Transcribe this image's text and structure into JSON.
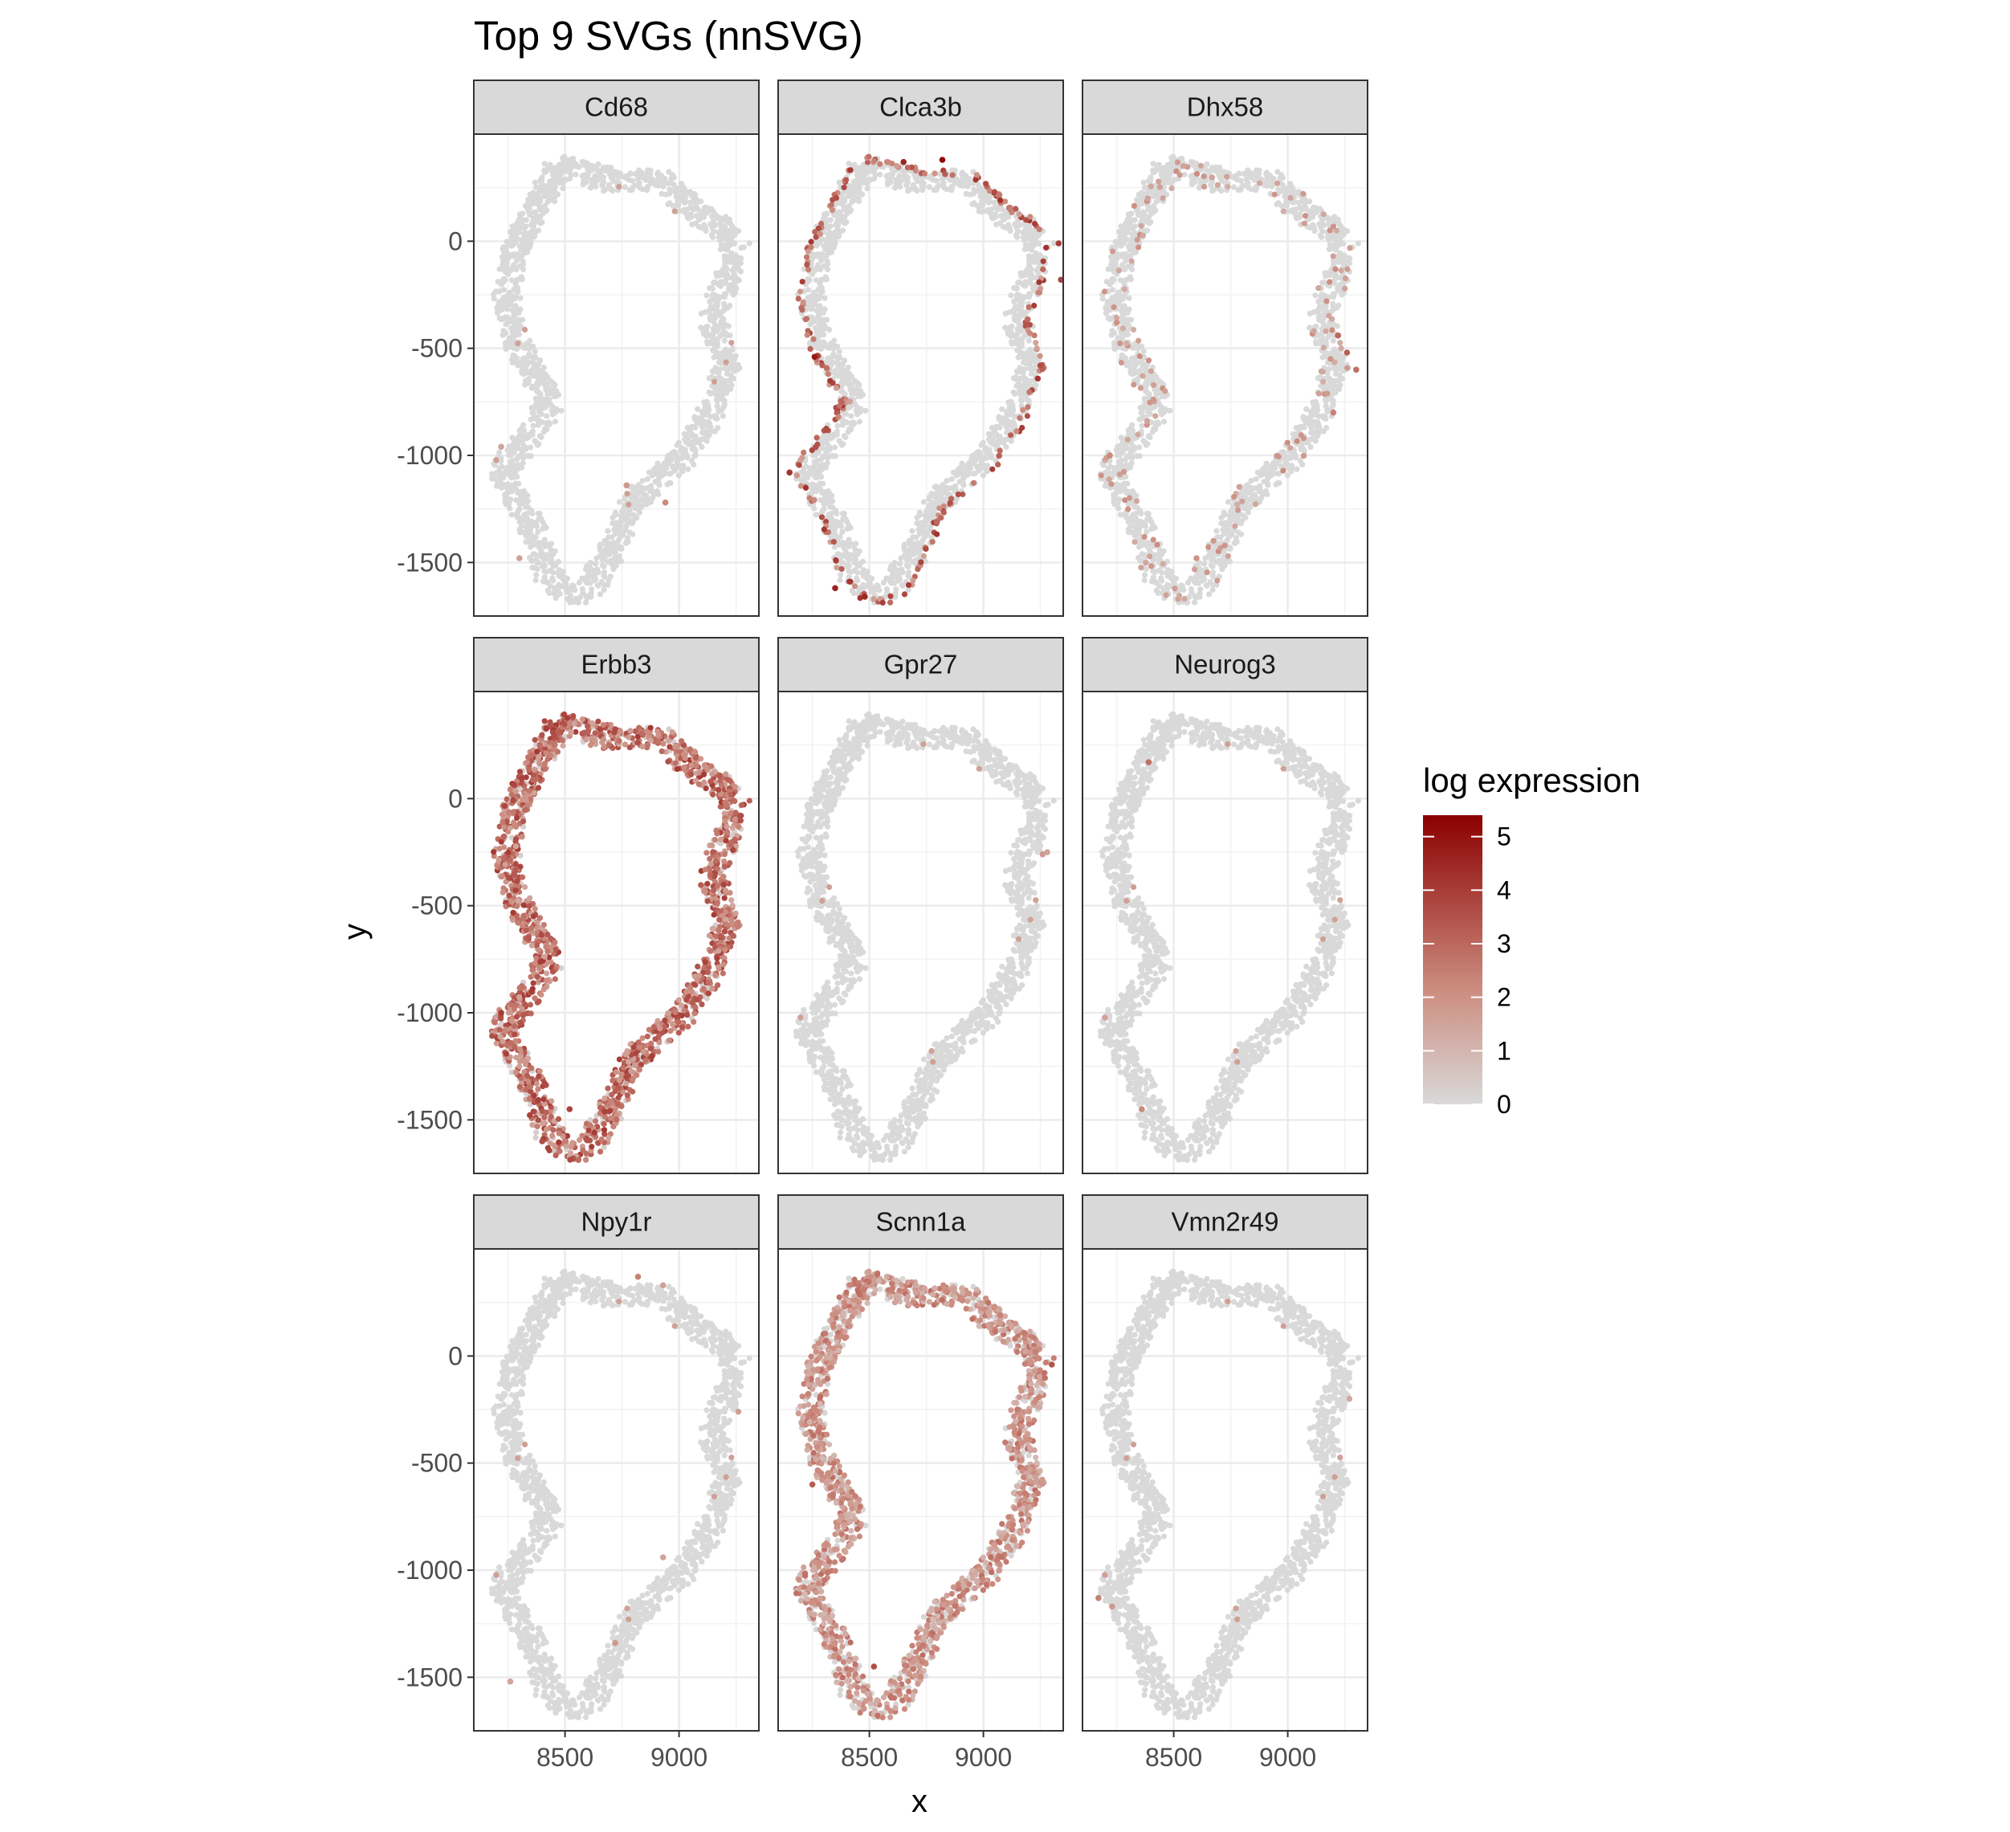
{
  "chart_data": {
    "type": "scatter",
    "title": "Top 9 SVGs (nnSVG)",
    "xlabel": "x",
    "ylabel": "y",
    "xlim": [
      8100,
      9350
    ],
    "ylim": [
      -1750,
      500
    ],
    "x_ticks": [
      8500,
      9000
    ],
    "x_tick_labels": [
      "8500",
      "9000"
    ],
    "y_ticks": [
      0,
      -500,
      -1000,
      -1500
    ],
    "y_tick_labels": [
      "0",
      "-500",
      "-1000",
      "-1500"
    ],
    "facet_layout": {
      "rows": 3,
      "cols": 3
    },
    "grid": true,
    "legend": {
      "title": "log expression",
      "placement": "right",
      "range": [
        0,
        5.4
      ],
      "ticks": [
        0,
        1,
        2,
        3,
        4,
        5
      ],
      "tick_labels": [
        "0",
        "1",
        "2",
        "3",
        "4",
        "5"
      ],
      "color_low": "#d9d9d9",
      "color_high": "#8b0000"
    },
    "tissue_outline": [
      [
        8480,
        350
      ],
      [
        8750,
        320
      ],
      [
        8950,
        300
      ],
      [
        9120,
        180
      ],
      [
        9280,
        40
      ],
      [
        9250,
        -170
      ],
      [
        9180,
        -350
      ],
      [
        9260,
        -560
      ],
      [
        9170,
        -780
      ],
      [
        9050,
        -1000
      ],
      [
        8830,
        -1200
      ],
      [
        8750,
        -1420
      ],
      [
        8620,
        -1580
      ],
      [
        8500,
        -1600
      ],
      [
        8380,
        -1520
      ],
      [
        8300,
        -1300
      ],
      [
        8180,
        -1100
      ],
      [
        8280,
        -960
      ],
      [
        8400,
        -760
      ],
      [
        8260,
        -500
      ],
      [
        8200,
        -280
      ],
      [
        8240,
        -50
      ],
      [
        8360,
        200
      ]
    ],
    "outline_offsets": [
      [
        -10,
        0
      ],
      [
        -20,
        -40
      ],
      [
        -30,
        -10
      ],
      [
        -40,
        -50
      ],
      [
        -30,
        -30
      ],
      [
        -40,
        0
      ],
      [
        -40,
        -30
      ],
      [
        -40,
        0
      ],
      [
        -40,
        -40
      ],
      [
        -40,
        -20
      ],
      [
        -40,
        -20
      ],
      [
        -40,
        -10
      ],
      [
        0,
        -40
      ],
      [
        10,
        -40
      ],
      [
        40,
        -20
      ],
      [
        40,
        0
      ],
      [
        40,
        30
      ],
      [
        40,
        10
      ],
      [
        40,
        0
      ],
      [
        40,
        0
      ],
      [
        40,
        10
      ],
      [
        40,
        20
      ],
      [
        30,
        -20
      ]
    ],
    "tissue_band_width": 110,
    "panels": [
      {
        "gene": "Cd68",
        "expression_profile": "sparse",
        "expressed_spots": [
          {
            "x": 8940,
            "y": -1220,
            "log_expression": 2.2
          },
          {
            "x": 8770,
            "y": -1140,
            "log_expression": 1.8
          },
          {
            "x": 8300,
            "y": -1480,
            "log_expression": 1.6
          },
          {
            "x": 8220,
            "y": -960,
            "log_expression": 1.5
          }
        ]
      },
      {
        "gene": "Clca3b",
        "expression_profile": "outer edge",
        "expressed_spots": [
          {
            "x": 8820,
            "y": 380,
            "log_expression": 5.2
          },
          {
            "x": 8650,
            "y": 370,
            "log_expression": 4.5
          },
          {
            "x": 8260,
            "y": -540,
            "log_expression": 4.8
          },
          {
            "x": 8150,
            "y": -1080,
            "log_expression": 4.2
          },
          {
            "x": 8350,
            "y": -1620,
            "log_expression": 4.6
          },
          {
            "x": 8480,
            "y": -1660,
            "log_expression": 4.5
          },
          {
            "x": 9330,
            "y": -10,
            "log_expression": 4.0
          },
          {
            "x": 9340,
            "y": -180,
            "log_expression": 3.8
          },
          {
            "x": 9250,
            "y": -580,
            "log_expression": 3.6
          }
        ]
      },
      {
        "gene": "Dhx58",
        "expression_profile": "sparse ring",
        "expressed_spots": [
          {
            "x": 9260,
            "y": -520,
            "log_expression": 3.2
          },
          {
            "x": 9220,
            "y": -440,
            "log_expression": 3.0
          },
          {
            "x": 9300,
            "y": -600,
            "log_expression": 2.8
          },
          {
            "x": 9200,
            "y": -800,
            "log_expression": 2.4
          },
          {
            "x": 8220,
            "y": -1000,
            "log_expression": 2.2
          },
          {
            "x": 8600,
            "y": -1480,
            "log_expression": 2.0
          },
          {
            "x": 8250,
            "y": -380,
            "log_expression": 2.0
          }
        ]
      },
      {
        "gene": "Erbb3",
        "expression_profile": "broad high",
        "expressed_spots": [
          {
            "x": 8220,
            "y": -1000,
            "log_expression": 4.0
          },
          {
            "x": 8520,
            "y": -1450,
            "log_expression": 3.8
          },
          {
            "x": 8400,
            "y": -1600,
            "log_expression": 3.6
          },
          {
            "x": 9200,
            "y": -620,
            "log_expression": 3.5
          }
        ]
      },
      {
        "gene": "Gpr27",
        "expression_profile": "sparse",
        "expressed_spots": [
          {
            "x": 9260,
            "y": -260,
            "log_expression": 1.8
          },
          {
            "x": 9280,
            "y": -250,
            "log_expression": 1.5
          }
        ]
      },
      {
        "gene": "Neurog3",
        "expression_profile": "sparse",
        "expressed_spots": [
          {
            "x": 8390,
            "y": 170,
            "log_expression": 2.8
          },
          {
            "x": 8360,
            "y": -1450,
            "log_expression": 2.2
          }
        ]
      },
      {
        "gene": "Npy1r",
        "expression_profile": "sparse",
        "expressed_spots": [
          {
            "x": 8820,
            "y": 370,
            "log_expression": 2.4
          },
          {
            "x": 8930,
            "y": 330,
            "log_expression": 1.6
          },
          {
            "x": 9260,
            "y": -260,
            "log_expression": 1.6
          },
          {
            "x": 8930,
            "y": -940,
            "log_expression": 1.5
          },
          {
            "x": 8260,
            "y": -1520,
            "log_expression": 1.5
          },
          {
            "x": 8720,
            "y": -1340,
            "log_expression": 1.8
          }
        ]
      },
      {
        "gene": "Scnn1a",
        "expression_profile": "broad medium",
        "expressed_spots": [
          {
            "x": 8520,
            "y": -1450,
            "log_expression": 3.6
          },
          {
            "x": 9300,
            "y": -40,
            "log_expression": 3.4
          },
          {
            "x": 8250,
            "y": -600,
            "log_expression": 3.2
          }
        ]
      },
      {
        "gene": "Vmn2r49",
        "expression_profile": "sparse",
        "expressed_spots": [
          {
            "x": 8170,
            "y": -1130,
            "log_expression": 2.4
          },
          {
            "x": 8230,
            "y": -1170,
            "log_expression": 1.8
          },
          {
            "x": 9270,
            "y": -200,
            "log_expression": 1.4
          }
        ]
      }
    ]
  }
}
